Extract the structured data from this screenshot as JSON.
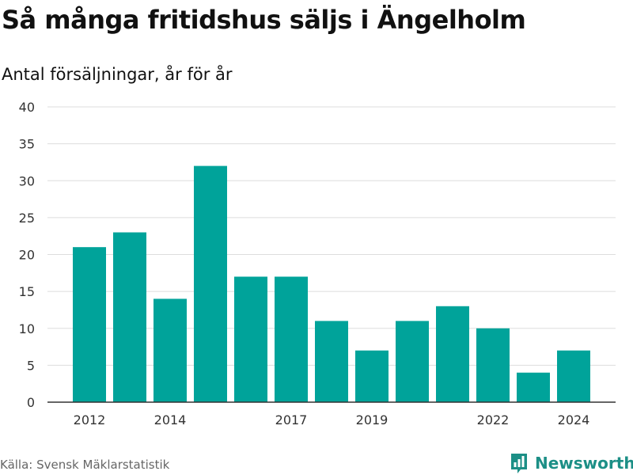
{
  "title": "Så många fritidshus säljs i Ängelholm",
  "subtitle": "Antal försäljningar, år för år",
  "source": "Källa: Svensk Mäklarstatistik",
  "brand": {
    "name": "Newsworthy",
    "icon": "bar-chart-logo-icon",
    "color": "#1c8f86"
  },
  "colors": {
    "bar": "#00a39a",
    "grid": "#dddddd",
    "axis": "#333333"
  },
  "chart_data": {
    "type": "bar",
    "categories": [
      2012,
      2013,
      2014,
      2015,
      2016,
      2017,
      2018,
      2019,
      2020,
      2021,
      2022,
      2023,
      2024
    ],
    "values": [
      21,
      23,
      14,
      32,
      17,
      17,
      11,
      7,
      11,
      13,
      10,
      4,
      7
    ],
    "x_tick_labels": [
      "2012",
      "2014",
      "2017",
      "2019",
      "2022",
      "2024"
    ],
    "y_ticks": [
      0,
      5,
      10,
      15,
      20,
      25,
      30,
      35,
      40
    ],
    "ylim": [
      0,
      40
    ],
    "grid": true,
    "legend": "none",
    "title": "Så många fritidshus säljs i Ängelholm",
    "subtitle": "Antal försäljningar, år för år"
  }
}
